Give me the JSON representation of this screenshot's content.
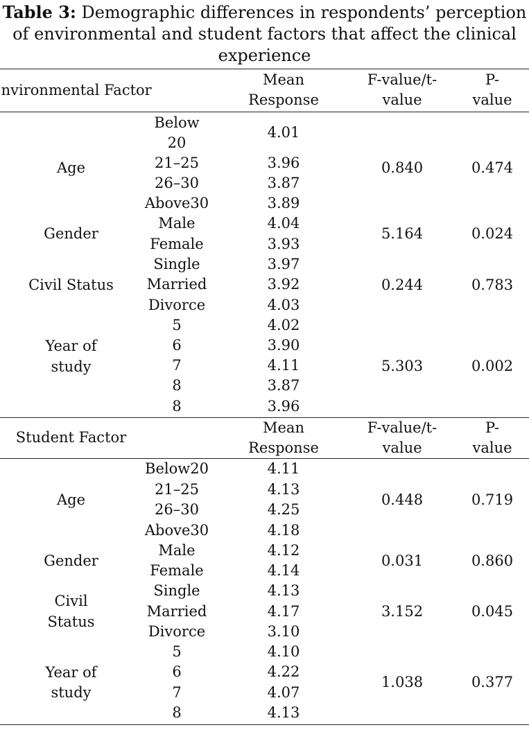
{
  "caption": {
    "label": "Table 3:",
    "text": " Demographic differences in respondents’ perception of environmental and student factors that affect the clinical experience"
  },
  "sections": [
    {
      "header": {
        "factor": "Environmental Factor",
        "mean": "Mean Response",
        "fvalue": "F-value/t-value",
        "pvalue": "P-value"
      },
      "groups": [
        {
          "name": "Age",
          "f": "0.840",
          "p": "0.474",
          "rows": [
            {
              "level": "Below 20",
              "mean": "4.01"
            },
            {
              "level": "21–25",
              "mean": "3.96"
            },
            {
              "level": "26–30",
              "mean": "3.87"
            },
            {
              "level": "Above30",
              "mean": "3.89"
            }
          ]
        },
        {
          "name": "Gender",
          "f": "5.164",
          "p": "0.024",
          "rows": [
            {
              "level": "Male",
              "mean": "4.04"
            },
            {
              "level": "Female",
              "mean": "3.93"
            }
          ]
        },
        {
          "name": "Civil Status",
          "f": "0.244",
          "p": "0.783",
          "rows": [
            {
              "level": "Single",
              "mean": "3.97"
            },
            {
              "level": "Married",
              "mean": "3.92"
            },
            {
              "level": "Divorce",
              "mean": "4.03"
            }
          ]
        },
        {
          "name": "Year of study",
          "f": "5.303",
          "p": "0.002",
          "rows": [
            {
              "level": "5",
              "mean": "4.02"
            },
            {
              "level": "6",
              "mean": "3.90"
            },
            {
              "level": "7",
              "mean": "4.11"
            },
            {
              "level": "8",
              "mean": "3.87"
            },
            {
              "level": "8",
              "mean": "3.96"
            }
          ]
        }
      ]
    },
    {
      "header": {
        "factor": "Student Factor",
        "mean": "Mean Response",
        "fvalue": "F-value/t-value",
        "pvalue": "P-value"
      },
      "groups": [
        {
          "name": "Age",
          "f": "0.448",
          "p": "0.719",
          "rows": [
            {
              "level": "Below20",
              "mean": "4.11"
            },
            {
              "level": "21–25",
              "mean": "4.13"
            },
            {
              "level": "26–30",
              "mean": "4.25"
            },
            {
              "level": "Above30",
              "mean": "4.18"
            }
          ]
        },
        {
          "name": "Gender",
          "f": "0.031",
          "p": "0.860",
          "rows": [
            {
              "level": "Male",
              "mean": "4.12"
            },
            {
              "level": "Female",
              "mean": "4.14"
            }
          ]
        },
        {
          "name": "Civil Status",
          "f": "3.152",
          "p": "0.045",
          "rows": [
            {
              "level": "Single",
              "mean": "4.13"
            },
            {
              "level": "Married",
              "mean": "4.17"
            },
            {
              "level": "Divorce",
              "mean": "3.10"
            }
          ]
        },
        {
          "name": "Year of study",
          "f": "1.038",
          "p": "0.377",
          "rows": [
            {
              "level": "5",
              "mean": "4.10"
            },
            {
              "level": "6",
              "mean": "4.22"
            },
            {
              "level": "7",
              "mean": "4.07"
            },
            {
              "level": "8",
              "mean": "4.13"
            }
          ]
        }
      ]
    }
  ]
}
